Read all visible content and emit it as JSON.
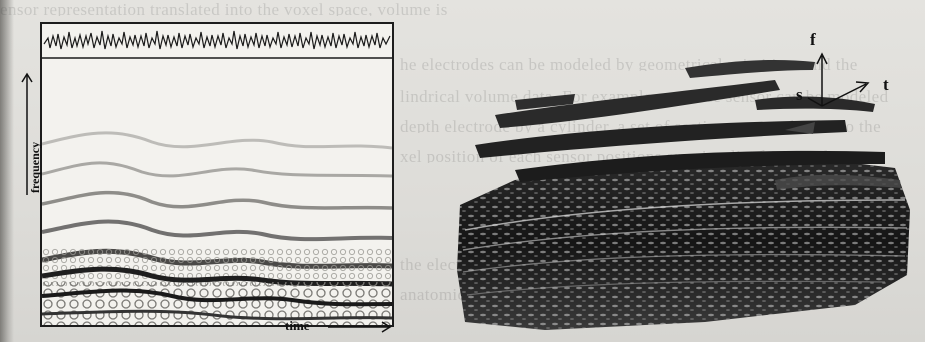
{
  "figure": {
    "axis_labels": {
      "frequency": "frequency",
      "time": "time"
    },
    "volume_axes": {
      "f": "f",
      "s": "s",
      "t": "t"
    }
  }
}
